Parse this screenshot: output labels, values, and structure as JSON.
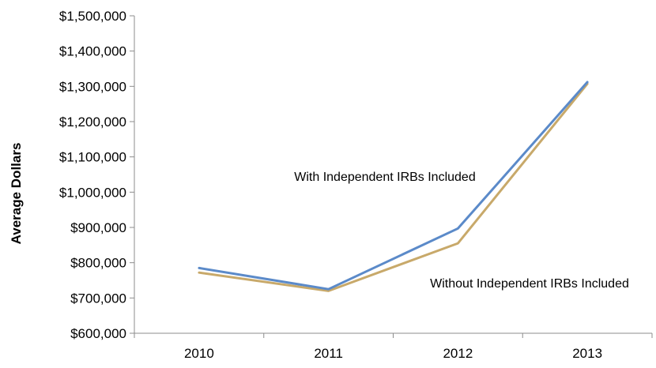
{
  "chart_data": {
    "type": "line",
    "title": "",
    "xlabel": "",
    "ylabel": "Average Dollars",
    "categories": [
      "2010",
      "2011",
      "2012",
      "2013"
    ],
    "ylim": [
      600000,
      1500000
    ],
    "yticks": [
      600000,
      700000,
      800000,
      900000,
      1000000,
      1100000,
      1200000,
      1300000,
      1400000,
      1500000
    ],
    "ytick_labels": [
      "$600,000",
      "$700,000",
      "$800,000",
      "$900,000",
      "$1,000,000",
      "$1,100,000",
      "$1,200,000",
      "$1,300,000",
      "$1,400,000",
      "$1,500,000"
    ],
    "grid": false,
    "legend": "none",
    "series": [
      {
        "name": "With Independent IRBs Included",
        "values": [
          785000,
          725000,
          897000,
          1312000
        ],
        "color": "#5B8AC9"
      },
      {
        "name": "Without Independent IRBs Included",
        "values": [
          772000,
          720000,
          855000,
          1307000
        ],
        "color": "#C8A96A"
      }
    ]
  }
}
